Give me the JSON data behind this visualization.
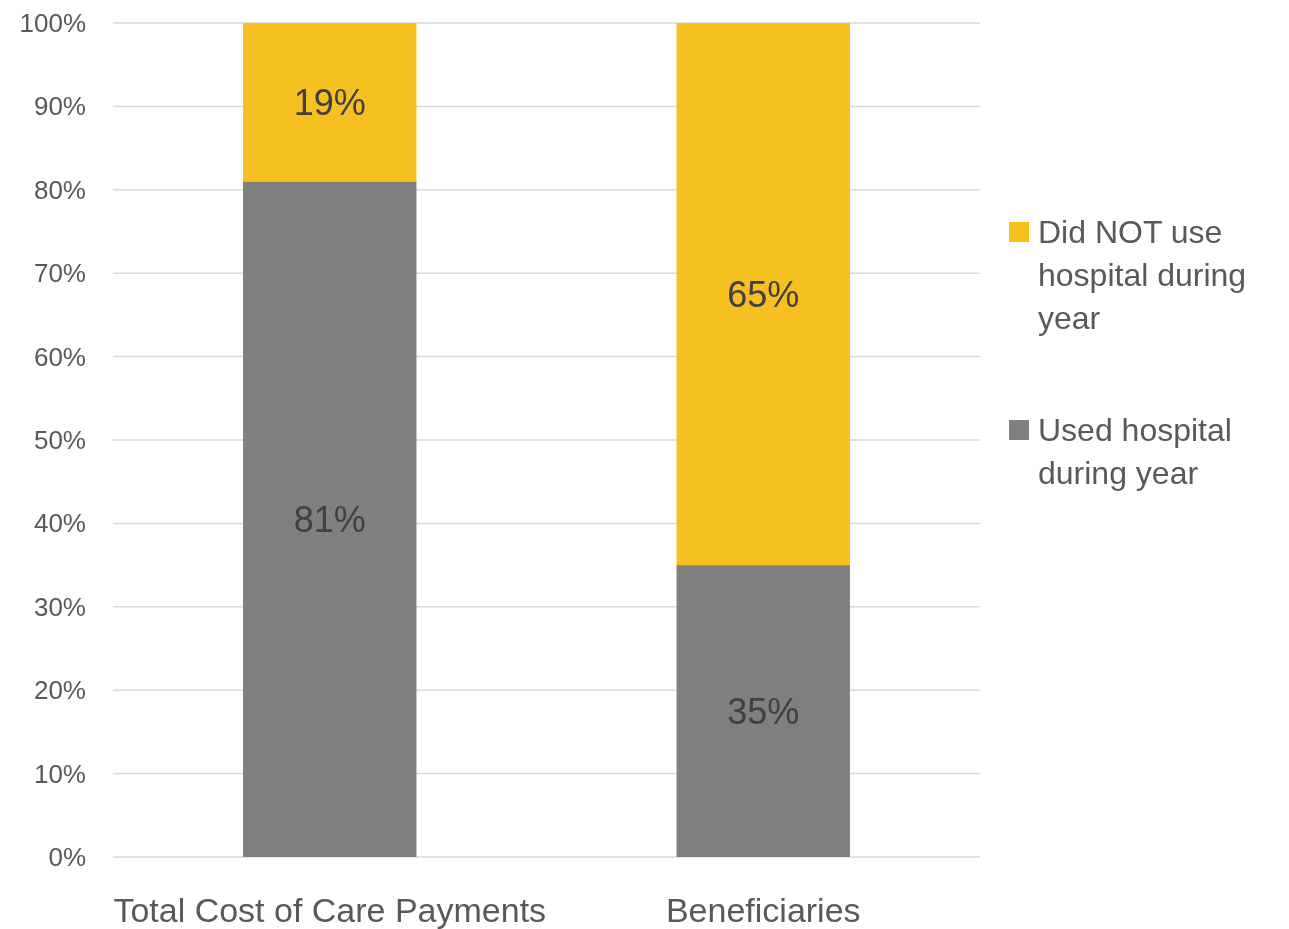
{
  "chart_data": {
    "type": "bar",
    "stacked": true,
    "categories": [
      "Total Cost of Care Payments",
      "Beneficiaries"
    ],
    "series": [
      {
        "name": "Used hospital during year",
        "color": "#7f7f7f",
        "values": [
          81,
          35
        ],
        "value_labels": [
          "81%",
          "35%"
        ]
      },
      {
        "name": "Did NOT use hospital during year",
        "color": "#f6c120",
        "values": [
          19,
          65
        ],
        "value_labels": [
          "19%",
          "65%"
        ]
      }
    ],
    "ylim": [
      0,
      100
    ],
    "yticks": [
      {
        "value": 0,
        "label": "0%"
      },
      {
        "value": 10,
        "label": "10%"
      },
      {
        "value": 20,
        "label": "20%"
      },
      {
        "value": 30,
        "label": "30%"
      },
      {
        "value": 40,
        "label": "40%"
      },
      {
        "value": 50,
        "label": "50%"
      },
      {
        "value": 60,
        "label": "60%"
      },
      {
        "value": 70,
        "label": "70%"
      },
      {
        "value": 80,
        "label": "80%"
      },
      {
        "value": 90,
        "label": "90%"
      },
      {
        "value": 100,
        "label": "100%"
      }
    ],
    "grid": "y",
    "legend": "right"
  }
}
